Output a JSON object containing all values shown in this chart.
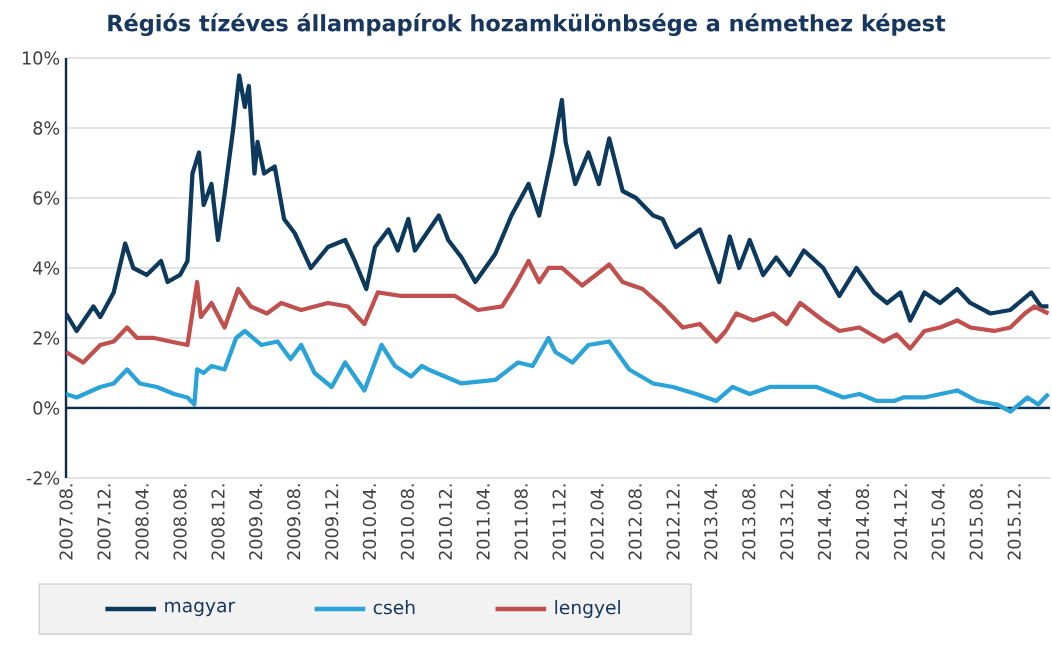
{
  "chart_data": {
    "type": "line",
    "title": "Régiós tízéves állampapírok hozamkülönbsége a némethez képest",
    "xlim": [
      "2007-08-01",
      "2016-03-25"
    ],
    "xticks": [
      {
        "value": "2007-08",
        "label": "2007.08."
      },
      {
        "value": "2007-12",
        "label": "2007.12."
      },
      {
        "value": "2008-04",
        "label": "2008.04."
      },
      {
        "value": "2008-08",
        "label": "2008.08."
      },
      {
        "value": "2008-12",
        "label": "2008.12."
      },
      {
        "value": "2009-04",
        "label": "2009.04."
      },
      {
        "value": "2009-08",
        "label": "2009.08."
      },
      {
        "value": "2009-12",
        "label": "2009.12."
      },
      {
        "value": "2010-04",
        "label": "2010.04."
      },
      {
        "value": "2010-08",
        "label": "2010.08."
      },
      {
        "value": "2010-12",
        "label": "2010.12."
      },
      {
        "value": "2011-04",
        "label": "2011.04."
      },
      {
        "value": "2011-08",
        "label": "2011.08."
      },
      {
        "value": "2011-12",
        "label": "2011.12."
      },
      {
        "value": "2012-04",
        "label": "2012.04."
      },
      {
        "value": "2012-08",
        "label": "2012.08."
      },
      {
        "value": "2012-12",
        "label": "2012.12."
      },
      {
        "value": "2013-04",
        "label": "2013.04."
      },
      {
        "value": "2013-08",
        "label": "2013.08."
      },
      {
        "value": "2013-12",
        "label": "2013.12."
      },
      {
        "value": "2014-04",
        "label": "2014.04."
      },
      {
        "value": "2014-08",
        "label": "2014.08."
      },
      {
        "value": "2014-12",
        "label": "2014.12."
      },
      {
        "value": "2015-04",
        "label": "2015.04."
      },
      {
        "value": "2015-08",
        "label": "2015.08."
      },
      {
        "value": "2015-12",
        "label": "2015.12."
      }
    ],
    "ylim": [
      -2,
      10
    ],
    "yticks": [
      {
        "value": -2,
        "label": "-2%"
      },
      {
        "value": 0,
        "label": "0%"
      },
      {
        "value": 2,
        "label": "2%"
      },
      {
        "value": 4,
        "label": "4%"
      },
      {
        "value": 6,
        "label": "6%"
      },
      {
        "value": 8,
        "label": "8%"
      },
      {
        "value": 10,
        "label": "10%"
      }
    ],
    "grid": "y",
    "legend": "bottom",
    "series": [
      {
        "name": "magyar",
        "color": "#0d3a5c",
        "x": [
          "2007-08-01",
          "2007-09-04",
          "2007-10-28",
          "2007-11-19",
          "2008-01-01",
          "2008-02-07",
          "2008-03-04",
          "2008-04-16",
          "2008-06-01",
          "2008-06-22",
          "2008-08-01",
          "2008-08-25",
          "2008-09-10",
          "2008-10-01",
          "2008-10-16",
          "2008-11-10",
          "2008-12-01",
          "2008-12-22",
          "2009-01-19",
          "2009-02-07",
          "2009-02-25",
          "2009-03-10",
          "2009-03-28",
          "2009-04-07",
          "2009-04-28",
          "2009-06-01",
          "2009-07-01",
          "2009-08-04",
          "2009-09-25",
          "2009-11-19",
          "2010-01-13",
          "2010-02-13",
          "2010-03-22",
          "2010-04-19",
          "2010-06-01",
          "2010-07-01",
          "2010-08-04",
          "2010-08-25",
          "2010-11-10",
          "2010-12-10",
          "2011-01-22",
          "2011-03-07",
          "2011-05-10",
          "2011-07-01",
          "2011-08-25",
          "2011-09-28",
          "2011-11-10",
          "2011-12-10",
          "2011-12-22",
          "2012-01-22",
          "2012-03-04",
          "2012-04-07",
          "2012-05-10",
          "2012-06-22",
          "2012-08-04",
          "2012-09-28",
          "2012-10-28",
          "2012-12-10",
          "2013-02-25",
          "2013-04-28",
          "2013-06-01",
          "2013-07-01",
          "2013-08-04",
          "2013-09-16",
          "2013-10-28",
          "2013-12-10",
          "2014-01-25",
          "2014-03-28",
          "2014-05-19",
          "2014-07-13",
          "2014-09-07",
          "2014-10-19",
          "2014-12-01",
          "2015-01-01",
          "2015-02-16",
          "2015-04-07",
          "2015-06-01",
          "2015-07-13",
          "2015-09-16",
          "2015-11-19",
          "2016-01-25",
          "2016-02-25",
          "2016-03-20"
        ],
        "values": [
          2.7,
          2.2,
          2.9,
          2.6,
          3.3,
          4.7,
          4.0,
          3.8,
          4.2,
          3.6,
          3.8,
          4.2,
          6.7,
          7.3,
          5.8,
          6.4,
          4.8,
          6.1,
          8.0,
          9.5,
          8.6,
          9.2,
          6.7,
          7.6,
          6.7,
          6.9,
          5.4,
          5.0,
          4.0,
          4.6,
          4.8,
          4.2,
          3.4,
          4.6,
          5.1,
          4.5,
          5.4,
          4.5,
          5.5,
          4.8,
          4.3,
          3.6,
          4.4,
          5.5,
          6.4,
          5.5,
          7.3,
          8.8,
          7.6,
          6.4,
          7.3,
          6.4,
          7.7,
          6.2,
          6.0,
          5.5,
          5.4,
          4.6,
          5.1,
          3.6,
          4.9,
          4.0,
          4.8,
          3.8,
          4.3,
          3.8,
          4.5,
          4.0,
          3.2,
          4.0,
          3.3,
          3.0,
          3.3,
          2.5,
          3.3,
          3.0,
          3.4,
          3.0,
          2.7,
          2.8,
          3.3,
          2.9,
          2.9
        ]
      },
      {
        "name": "cseh",
        "color": "#2aa3d8",
        "x": [
          "2007-08-01",
          "2007-09-04",
          "2007-11-19",
          "2008-01-01",
          "2008-02-13",
          "2008-03-25",
          "2008-05-19",
          "2008-07-13",
          "2008-08-25",
          "2008-09-16",
          "2008-09-25",
          "2008-10-16",
          "2008-11-10",
          "2008-12-22",
          "2009-01-28",
          "2009-02-25",
          "2009-04-19",
          "2009-06-10",
          "2009-07-22",
          "2009-08-25",
          "2009-10-07",
          "2009-12-01",
          "2010-01-13",
          "2010-03-16",
          "2010-05-10",
          "2010-06-22",
          "2010-08-13",
          "2010-09-16",
          "2010-10-07",
          "2011-01-22",
          "2011-05-10",
          "2011-07-22",
          "2011-09-07",
          "2011-10-28",
          "2011-11-19",
          "2012-01-13",
          "2012-03-04",
          "2012-05-10",
          "2012-07-13",
          "2012-09-28",
          "2012-12-01",
          "2013-02-13",
          "2013-04-19",
          "2013-06-10",
          "2013-08-04",
          "2013-10-07",
          "2013-12-10",
          "2014-03-07",
          "2014-06-01",
          "2014-07-22",
          "2014-09-16",
          "2014-11-10",
          "2014-12-10",
          "2015-02-16",
          "2015-06-01",
          "2015-08-04",
          "2015-10-07",
          "2015-11-19",
          "2016-01-13",
          "2016-02-16",
          "2016-03-20"
        ],
        "values": [
          0.4,
          0.3,
          0.6,
          0.7,
          1.1,
          0.7,
          0.6,
          0.4,
          0.3,
          0.1,
          1.1,
          1.0,
          1.2,
          1.1,
          2.0,
          2.2,
          1.8,
          1.9,
          1.4,
          1.8,
          1.0,
          0.6,
          1.3,
          0.5,
          1.8,
          1.2,
          0.9,
          1.2,
          1.1,
          0.7,
          0.8,
          1.3,
          1.2,
          2.0,
          1.6,
          1.3,
          1.8,
          1.9,
          1.1,
          0.7,
          0.6,
          0.4,
          0.2,
          0.6,
          0.4,
          0.6,
          0.6,
          0.6,
          0.3,
          0.4,
          0.2,
          0.2,
          0.3,
          0.3,
          0.5,
          0.2,
          0.1,
          -0.1,
          0.3,
          0.1,
          0.4
        ]
      },
      {
        "name": "lengyel",
        "color": "#c0504d",
        "x": [
          "2007-08-01",
          "2007-09-25",
          "2007-11-19",
          "2008-01-01",
          "2008-02-13",
          "2008-03-16",
          "2008-05-10",
          "2008-07-01",
          "2008-08-25",
          "2008-09-25",
          "2008-10-07",
          "2008-11-10",
          "2008-12-22",
          "2009-02-04",
          "2009-03-16",
          "2009-05-07",
          "2009-06-22",
          "2009-08-25",
          "2009-11-19",
          "2010-01-22",
          "2010-03-16",
          "2010-04-28",
          "2010-07-13",
          "2010-10-28",
          "2011-01-01",
          "2011-03-16",
          "2011-06-01",
          "2011-07-13",
          "2011-08-25",
          "2011-09-28",
          "2011-10-28",
          "2011-12-10",
          "2012-02-13",
          "2012-03-28",
          "2012-05-10",
          "2012-06-22",
          "2012-08-25",
          "2012-10-28",
          "2013-01-01",
          "2013-02-25",
          "2013-04-19",
          "2013-05-19",
          "2013-06-22",
          "2013-08-16",
          "2013-10-19",
          "2013-12-01",
          "2014-01-13",
          "2014-03-28",
          "2014-05-19",
          "2014-07-22",
          "2014-10-07",
          "2014-11-19",
          "2015-01-01",
          "2015-02-16",
          "2015-04-07",
          "2015-06-01",
          "2015-07-13",
          "2015-09-28",
          "2015-11-19",
          "2016-01-04",
          "2016-02-04",
          "2016-03-20"
        ],
        "values": [
          1.6,
          1.3,
          1.8,
          1.9,
          2.3,
          2.0,
          2.0,
          1.9,
          1.8,
          3.6,
          2.6,
          3.0,
          2.3,
          3.4,
          2.9,
          2.7,
          3.0,
          2.8,
          3.0,
          2.9,
          2.4,
          3.3,
          3.2,
          3.2,
          3.2,
          2.8,
          2.9,
          3.5,
          4.2,
          3.6,
          4.0,
          4.0,
          3.5,
          3.8,
          4.1,
          3.6,
          3.4,
          2.9,
          2.3,
          2.4,
          1.9,
          2.2,
          2.7,
          2.5,
          2.7,
          2.4,
          3.0,
          2.5,
          2.2,
          2.3,
          1.9,
          2.1,
          1.7,
          2.2,
          2.3,
          2.5,
          2.3,
          2.2,
          2.3,
          2.7,
          2.9,
          2.7
        ]
      }
    ]
  }
}
